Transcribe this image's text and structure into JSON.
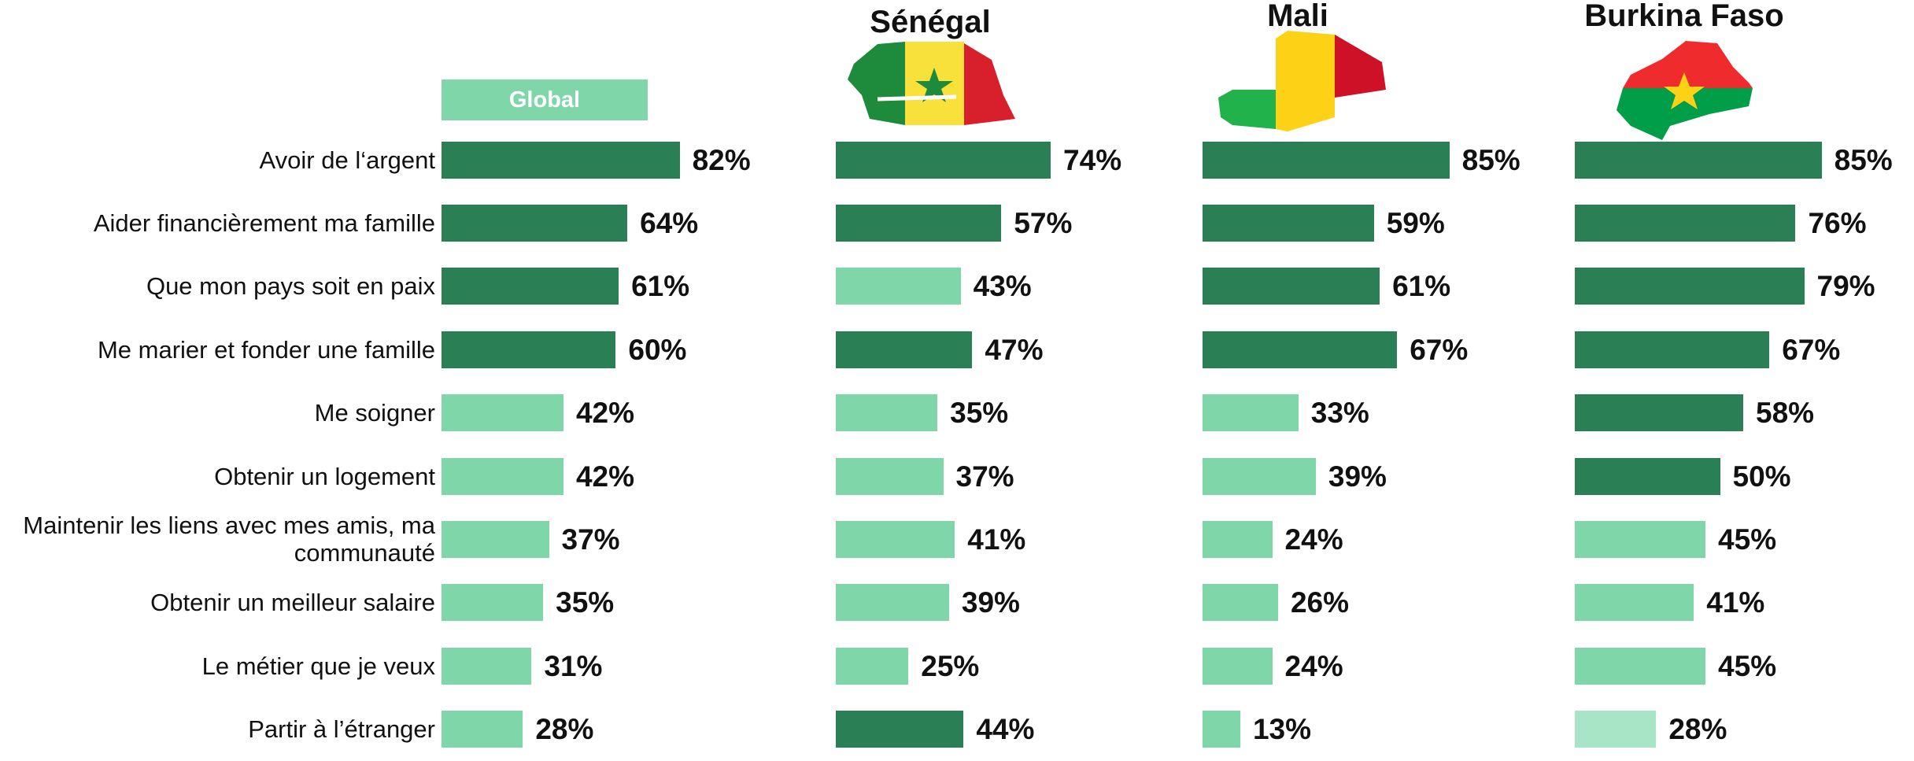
{
  "chart_data": {
    "type": "bar",
    "categories": [
      "Avoir de l‘argent",
      "Aider financièrement ma famille",
      "Que mon pays soit en paix",
      "Me marier et fonder une famille",
      "Me soigner",
      "Obtenir un logement",
      "Maintenir les liens avec mes amis, ma communauté",
      "Obtenir un meilleur salaire",
      "Le métier que je veux",
      "Partir à l’étranger"
    ],
    "series": [
      {
        "name": "Global",
        "values": [
          82,
          64,
          61,
          60,
          42,
          42,
          37,
          35,
          31,
          28
        ],
        "value_labels": [
          "82%",
          "64%",
          "61%",
          "60%",
          "42%",
          "42%",
          "37%",
          "35%",
          "31%",
          "28%"
        ],
        "colors": [
          "#2a7f55",
          "#2a7f55",
          "#2a7f55",
          "#2a7f55",
          "#7fd6a8",
          "#7fd6a8",
          "#7fd6a8",
          "#7fd6a8",
          "#7fd6a8",
          "#7fd6a8"
        ]
      },
      {
        "name": "Sénégal",
        "values": [
          74,
          57,
          43,
          47,
          35,
          37,
          41,
          39,
          25,
          44
        ],
        "value_labels": [
          "74%",
          "57%",
          "43%",
          "47%",
          "35%",
          "37%",
          "41%",
          "39%",
          "25%",
          "44%"
        ],
        "colors": [
          "#2a7f55",
          "#2a7f55",
          "#7fd6a8",
          "#2a7f55",
          "#7fd6a8",
          "#7fd6a8",
          "#7fd6a8",
          "#7fd6a8",
          "#7fd6a8",
          "#2a7f55"
        ]
      },
      {
        "name": "Mali",
        "values": [
          85,
          59,
          61,
          67,
          33,
          39,
          24,
          26,
          24,
          13
        ],
        "value_labels": [
          "85%",
          "59%",
          "61%",
          "67%",
          "33%",
          "39%",
          "24%",
          "26%",
          "24%",
          "13%"
        ],
        "colors": [
          "#2a7f55",
          "#2a7f55",
          "#2a7f55",
          "#2a7f55",
          "#7fd6a8",
          "#7fd6a8",
          "#7fd6a8",
          "#7fd6a8",
          "#7fd6a8",
          "#7fd6a8"
        ]
      },
      {
        "name": "Burkina Faso",
        "values": [
          85,
          76,
          79,
          67,
          58,
          50,
          45,
          41,
          45,
          28
        ],
        "value_labels": [
          "85%",
          "76%",
          "79%",
          "67%",
          "58%",
          "50%",
          "45%",
          "41%",
          "45%",
          "28%"
        ],
        "colors": [
          "#2a7f55",
          "#2a7f55",
          "#2a7f55",
          "#2a7f55",
          "#2a7f55",
          "#2a7f55",
          "#7fd6a8",
          "#7fd6a8",
          "#7fd6a8",
          "#a8e4c6"
        ]
      }
    ]
  }
}
